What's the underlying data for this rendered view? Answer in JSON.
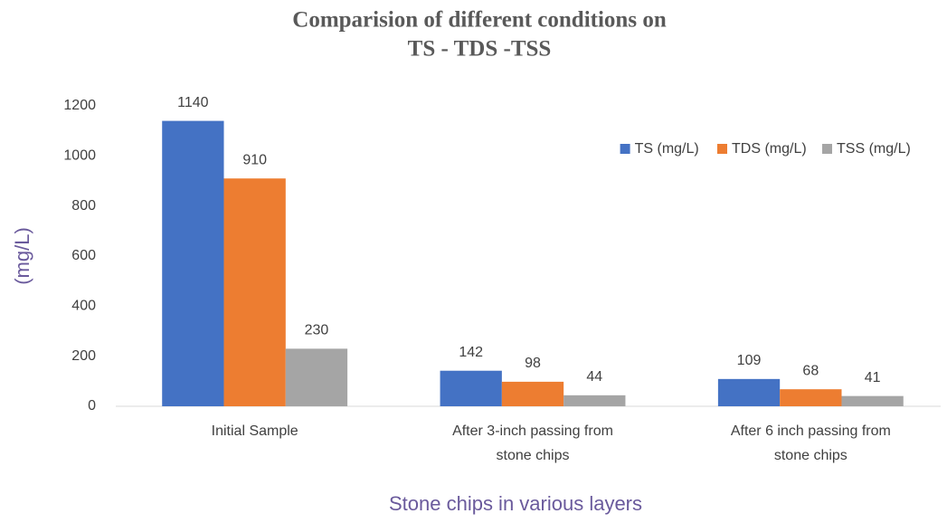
{
  "chart_data": {
    "type": "bar",
    "title": [
      "Comparision of different conditions on",
      "TS - TDS -TSS"
    ],
    "categories": [
      "Initial Sample",
      "After 3-inch passing from stone chips",
      "After 6 inch passing from stone chips"
    ],
    "series": [
      {
        "name": "TS (mg/L)",
        "color": "#4472c4",
        "values": [
          1140,
          142,
          109
        ]
      },
      {
        "name": "TDS (mg/L)",
        "color": "#ed7d31",
        "values": [
          910,
          98,
          68
        ]
      },
      {
        "name": "TSS (mg/L)",
        "color": "#a5a5a5",
        "values": [
          230,
          44,
          41
        ]
      }
    ],
    "ylabel": "(mg/L)",
    "xlabel": "Stone chips in various layers",
    "ylim": [
      0,
      1200
    ],
    "yticks": [
      0,
      200,
      400,
      600,
      800,
      1000,
      1200
    ],
    "grid": false,
    "legend": "upper right"
  }
}
